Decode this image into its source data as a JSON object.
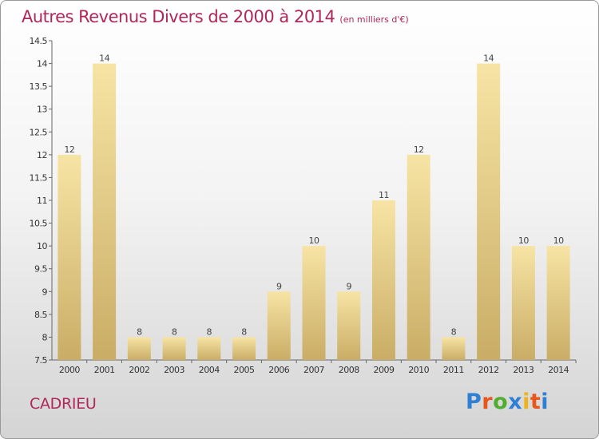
{
  "header": {
    "title": "Autres Revenus Divers de 2000 à 2014",
    "subtitle": "(en milliers d'€)"
  },
  "footer": {
    "place": "CADRIEU",
    "logo": "Proxiti"
  },
  "colors": {
    "title": "#b0285a",
    "bar_light": "#f7e4a4",
    "bar_dark": "#c9ad66",
    "logo": [
      "#2f7fd4",
      "#e8561c",
      "#4fae2f",
      "#2f7fd4",
      "#f0b21a",
      "#e8561c",
      "#2f7fd4"
    ]
  },
  "chart_data": {
    "type": "bar",
    "title": "Autres Revenus Divers de 2000 à 2014",
    "subtitle": "(en milliers d'€)",
    "categories": [
      "2000",
      "2001",
      "2002",
      "2003",
      "2004",
      "2005",
      "2006",
      "2007",
      "2008",
      "2009",
      "2010",
      "2011",
      "2012",
      "2013",
      "2014"
    ],
    "values": [
      12,
      14,
      8,
      8,
      8,
      8,
      9,
      10,
      9,
      11,
      12,
      8,
      14,
      10,
      10
    ],
    "value_labels": [
      "12",
      "14",
      "8",
      "8",
      "8",
      "8",
      "9",
      "10",
      "9",
      "11",
      "12",
      "8",
      "14",
      "10",
      "10"
    ],
    "ylim": [
      7.5,
      14.5
    ],
    "yticks": [
      "7.5",
      "8",
      "8.5",
      "9",
      "9.5",
      "10",
      "10.5",
      "11",
      "11.5",
      "12",
      "12.5",
      "13",
      "13.5",
      "14",
      "14.5"
    ],
    "grid": false,
    "xlabel": "",
    "ylabel": ""
  }
}
